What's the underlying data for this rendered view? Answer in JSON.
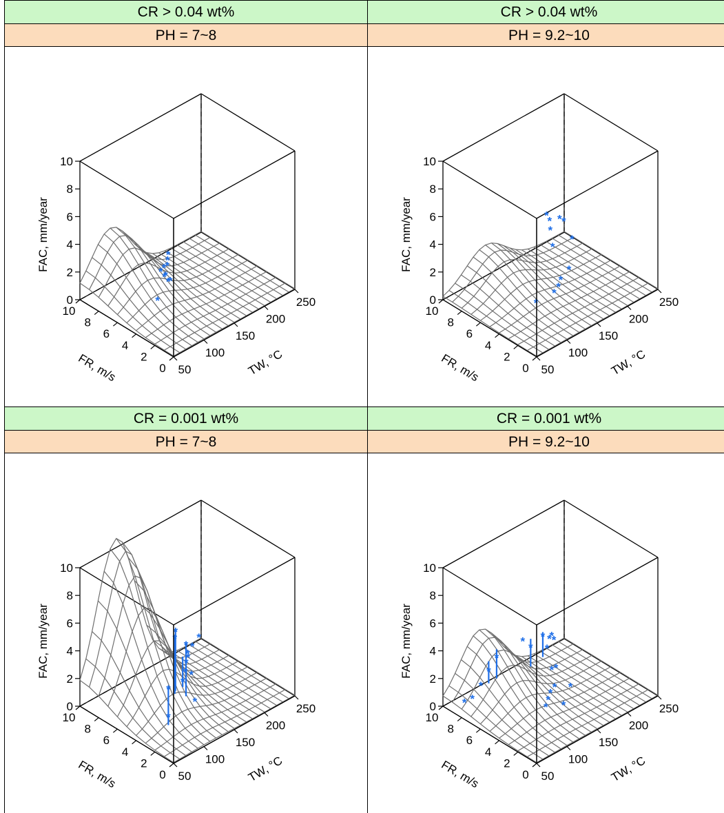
{
  "panels": [
    {
      "cr": "CR > 0.04 wt%",
      "ph": "PH = 7~8"
    },
    {
      "cr": "CR > 0.04 wt%",
      "ph": "PH = 9.2~10"
    },
    {
      "cr": "CR = 0.001 wt%",
      "ph": "PH = 7~8"
    },
    {
      "cr": "CR = 0.001 wt%",
      "ph": "PH = 9.2~10"
    }
  ],
  "axes": {
    "x": {
      "label": "TW, °C",
      "ticks": [
        50,
        100,
        150,
        200,
        250
      ],
      "range": [
        50,
        250
      ]
    },
    "y": {
      "label": "FR, m/s",
      "ticks": [
        0,
        2,
        4,
        6,
        8,
        10
      ],
      "range": [
        0,
        10
      ]
    },
    "z": {
      "label": "FAC, mm/year",
      "ticks": [
        0,
        2,
        4,
        6,
        8,
        10
      ],
      "range": [
        0,
        10
      ]
    }
  },
  "colors": {
    "surface": "#6e6e6e",
    "points": "#1f6fe8",
    "box": "#000000",
    "cr_strip": "#ccf7c8",
    "ph_strip": "#fcdcbc"
  },
  "chart_data": [
    {
      "type": "surface3d",
      "panel": 0,
      "surface_peak": {
        "TW": 100,
        "FR": 10,
        "FAC": 3.9
      },
      "points": [
        [
          140,
          7.2,
          1.0
        ],
        [
          140,
          6.8,
          0.8
        ],
        [
          140,
          6.4,
          0.6
        ],
        [
          145,
          7,
          0.7
        ],
        [
          145,
          6.5,
          0.5
        ],
        [
          150,
          7.5,
          0.9
        ],
        [
          160,
          7.8,
          0.7
        ],
        [
          170,
          8.4,
          0.6
        ],
        [
          180,
          9,
          0.5
        ],
        [
          110,
          5.6,
          0.3
        ]
      ]
    },
    {
      "type": "surface3d",
      "panel": 1,
      "surface_peak": {
        "TW": 120,
        "FR": 10,
        "FAC": 2.2
      },
      "points": [
        [
          190,
          8,
          3.5
        ],
        [
          195,
          8,
          3.0
        ],
        [
          190,
          7.6,
          2.6
        ],
        [
          200,
          8,
          1.0
        ],
        [
          230,
          9.2,
          1.8
        ],
        [
          240,
          9.4,
          1.3
        ],
        [
          235,
          8.2,
          0.6
        ],
        [
          190,
          5.6,
          0.6
        ],
        [
          170,
          5.2,
          0.5
        ],
        [
          160,
          4.8,
          0.4
        ],
        [
          150,
          4.6,
          0.3
        ],
        [
          120,
          4.6,
          0.3
        ]
      ]
    },
    {
      "type": "surface3d",
      "panel": 2,
      "surface_peak": {
        "TW": 110,
        "FR": 10,
        "FAC": 10.6
      },
      "points": [
        [
          80,
          2.5,
          3.6
        ],
        [
          80,
          2.5,
          1.6
        ],
        [
          115,
          4,
          6.3
        ],
        [
          120,
          4.4,
          5.5
        ],
        [
          140,
          4.5,
          4.5
        ],
        [
          145,
          4.8,
          3.0
        ],
        [
          150,
          5.5,
          1.2
        ],
        [
          170,
          6.5,
          1.0
        ],
        [
          175,
          6.2,
          0.8
        ],
        [
          185,
          7.2,
          1.4
        ],
        [
          200,
          8.2,
          0.9
        ],
        [
          220,
          9,
          0.6
        ],
        [
          240,
          9.6,
          0.5
        ],
        [
          150,
          4.2,
          0.3
        ]
      ],
      "error_bars": [
        [
          80,
          2.5,
          1.0,
          3.8
        ],
        [
          115,
          4,
          2.0,
          6.4
        ],
        [
          120,
          4.4,
          1.5,
          5.7
        ],
        [
          140,
          4.5,
          0.8,
          4.7
        ],
        [
          150,
          5.5,
          0.8,
          3.0
        ]
      ]
    },
    {
      "type": "surface3d",
      "panel": 3,
      "surface_peak": {
        "TW": 110,
        "FR": 10,
        "FAC": 4.0
      },
      "points": [
        [
          70,
          9,
          0.2
        ],
        [
          80,
          8.8,
          0.3
        ],
        [
          100,
          9.2,
          0.6
        ],
        [
          110,
          9,
          1.5
        ],
        [
          120,
          8.8,
          2.3
        ],
        [
          160,
          8.6,
          2.6
        ],
        [
          170,
          8.4,
          2.0
        ],
        [
          190,
          8.4,
          2.3
        ],
        [
          200,
          8.6,
          1.1
        ],
        [
          210,
          9,
          1.4
        ],
        [
          220,
          9.4,
          1.2
        ],
        [
          230,
          9.8,
          0.5
        ],
        [
          180,
          6.8,
          0.8
        ],
        [
          190,
          7,
          0.6
        ],
        [
          160,
          5.2,
          0.7
        ],
        [
          150,
          5,
          0.6
        ],
        [
          140,
          4.6,
          0.5
        ],
        [
          130,
          4.2,
          0.4
        ],
        [
          150,
          3.6,
          0.3
        ],
        [
          180,
          4.8,
          0.4
        ]
      ],
      "error_bars": [
        [
          110,
          9,
          0.6,
          2.2
        ],
        [
          120,
          8.8,
          0.8,
          2.9
        ],
        [
          170,
          8.4,
          0.6,
          2.6
        ],
        [
          190,
          8.4,
          0.8,
          2.6
        ]
      ]
    }
  ]
}
